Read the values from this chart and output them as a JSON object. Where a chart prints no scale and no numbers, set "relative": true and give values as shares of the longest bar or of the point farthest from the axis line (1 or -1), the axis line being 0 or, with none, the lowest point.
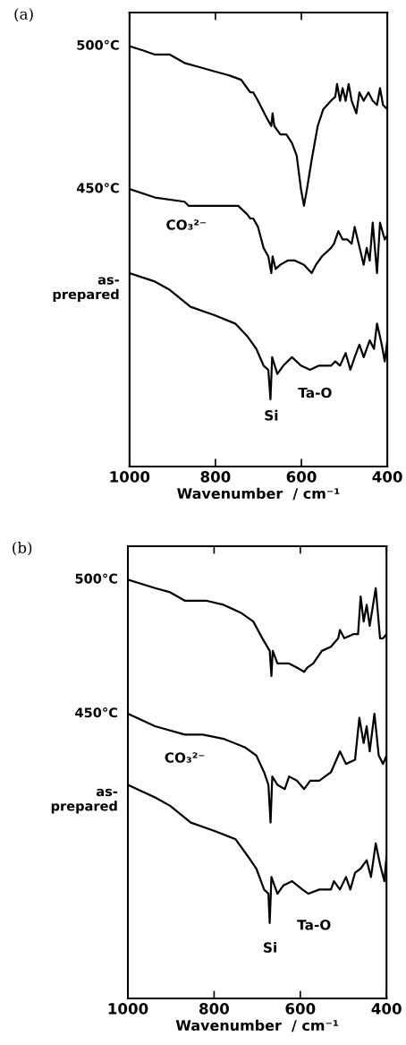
{
  "chart_data": [
    {
      "type": "line",
      "title": "(a)",
      "xlabel": "Wavenumber  / cm⁻¹",
      "relative": true,
      "xlim": [
        1000,
        400
      ],
      "xticks": [
        1000,
        800,
        600,
        400
      ],
      "tick_labels": "x",
      "grid": false,
      "legend": false,
      "marker": "none",
      "line_style": "solid",
      "series": [
        {
          "name": "500°C",
          "color": "#000000",
          "x": [
            1000,
            969,
            941,
            906,
            872,
            837,
            802,
            767,
            740,
            726,
            719,
            712,
            701,
            691,
            681,
            670,
            667,
            663,
            649,
            635,
            622,
            611,
            601,
            594,
            587,
            576,
            562,
            549,
            531,
            521,
            517,
            510,
            504,
            497,
            490,
            483,
            472,
            465,
            455,
            444,
            434,
            424,
            417,
            410,
            400
          ],
          "values": [
            1.0,
            0.99,
            0.98,
            0.98,
            0.96,
            0.95,
            0.94,
            0.93,
            0.92,
            0.9,
            0.89,
            0.89,
            0.87,
            0.85,
            0.83,
            0.81,
            0.84,
            0.81,
            0.79,
            0.79,
            0.77,
            0.74,
            0.66,
            0.62,
            0.66,
            0.73,
            0.81,
            0.85,
            0.87,
            0.88,
            0.91,
            0.87,
            0.9,
            0.87,
            0.91,
            0.87,
            0.84,
            0.89,
            0.87,
            0.89,
            0.87,
            0.86,
            0.9,
            0.86,
            0.85
          ]
        },
        {
          "name": "450°C",
          "color": "#000000",
          "x": [
            1000,
            941,
            872,
            862,
            851,
            802,
            747,
            726,
            719,
            712,
            701,
            688,
            677,
            670,
            667,
            660,
            649,
            632,
            615,
            594,
            576,
            566,
            552,
            531,
            524,
            514,
            504,
            493,
            483,
            476,
            469,
            455,
            448,
            441,
            434,
            424,
            417,
            406,
            400
          ],
          "values": [
            0.66,
            0.64,
            0.63,
            0.62,
            0.62,
            0.62,
            0.62,
            0.6,
            0.59,
            0.59,
            0.57,
            0.52,
            0.5,
            0.46,
            0.5,
            0.47,
            0.48,
            0.49,
            0.49,
            0.48,
            0.46,
            0.48,
            0.5,
            0.52,
            0.53,
            0.56,
            0.54,
            0.54,
            0.53,
            0.57,
            0.54,
            0.48,
            0.52,
            0.49,
            0.58,
            0.46,
            0.58,
            0.54,
            0.55
          ]
        },
        {
          "name": "as-\nprepared",
          "color": "#000000",
          "x": [
            1000,
            941,
            906,
            858,
            802,
            754,
            726,
            705,
            688,
            677,
            672,
            668,
            656,
            642,
            622,
            601,
            580,
            559,
            531,
            521,
            510,
            497,
            486,
            476,
            465,
            455,
            441,
            431,
            424,
            413,
            406,
            400
          ],
          "values": [
            0.46,
            0.44,
            0.42,
            0.38,
            0.36,
            0.34,
            0.31,
            0.28,
            0.24,
            0.23,
            0.16,
            0.26,
            0.22,
            0.24,
            0.26,
            0.24,
            0.23,
            0.24,
            0.24,
            0.25,
            0.24,
            0.27,
            0.23,
            0.26,
            0.29,
            0.26,
            0.3,
            0.28,
            0.34,
            0.29,
            0.25,
            0.3
          ]
        }
      ],
      "annotations": [
        "CO₃²⁻",
        "Si",
        "Ta-O"
      ]
    },
    {
      "type": "line",
      "title": "(b)",
      "xlabel": "Wavenumber  / cm⁻¹",
      "relative": true,
      "xlim": [
        1000,
        400
      ],
      "xticks": [
        1000,
        800,
        600,
        400
      ],
      "tick_labels": "x",
      "grid": false,
      "legend": false,
      "marker": "none",
      "line_style": "solid",
      "series": [
        {
          "name": "500°C",
          "color": "#000000",
          "x": [
            1000,
            937,
            902,
            868,
            857,
            819,
            778,
            736,
            709,
            688,
            671,
            667,
            664,
            653,
            639,
            626,
            608,
            591,
            584,
            570,
            550,
            529,
            512,
            508,
            498,
            477,
            466,
            460,
            453,
            446,
            439,
            425,
            415,
            408,
            400
          ],
          "values": [
            1.0,
            0.98,
            0.97,
            0.95,
            0.95,
            0.95,
            0.94,
            0.92,
            0.9,
            0.86,
            0.83,
            0.77,
            0.83,
            0.8,
            0.8,
            0.8,
            0.79,
            0.78,
            0.79,
            0.8,
            0.83,
            0.84,
            0.86,
            0.88,
            0.86,
            0.87,
            0.87,
            0.96,
            0.9,
            0.94,
            0.89,
            0.98,
            0.86,
            0.86,
            0.87
          ]
        },
        {
          "name": "450°C",
          "color": "#000000",
          "x": [
            1000,
            937,
            868,
            826,
            778,
            729,
            702,
            684,
            674,
            669,
            665,
            653,
            636,
            626,
            608,
            591,
            577,
            556,
            529,
            512,
            508,
            494,
            473,
            463,
            453,
            446,
            439,
            428,
            418,
            408,
            400
          ],
          "values": [
            0.68,
            0.65,
            0.63,
            0.63,
            0.62,
            0.6,
            0.58,
            0.54,
            0.51,
            0.42,
            0.53,
            0.51,
            0.5,
            0.53,
            0.52,
            0.5,
            0.52,
            0.52,
            0.54,
            0.58,
            0.59,
            0.56,
            0.57,
            0.67,
            0.61,
            0.65,
            0.59,
            0.68,
            0.58,
            0.56,
            0.58
          ]
        },
        {
          "name": "as-\nprepared",
          "color": "#000000",
          "x": [
            1000,
            937,
            902,
            854,
            799,
            750,
            722,
            702,
            684,
            674,
            671,
            667,
            653,
            639,
            619,
            595,
            581,
            556,
            529,
            522,
            508,
            494,
            484,
            473,
            460,
            446,
            436,
            425,
            415,
            405,
            400
          ],
          "values": [
            0.51,
            0.48,
            0.46,
            0.42,
            0.4,
            0.38,
            0.34,
            0.31,
            0.26,
            0.25,
            0.18,
            0.29,
            0.25,
            0.27,
            0.28,
            0.26,
            0.25,
            0.26,
            0.26,
            0.28,
            0.26,
            0.29,
            0.26,
            0.3,
            0.31,
            0.33,
            0.29,
            0.37,
            0.32,
            0.28,
            0.34
          ]
        }
      ],
      "annotations": [
        "CO₃²⁻",
        "Si",
        "Ta-O"
      ]
    }
  ]
}
